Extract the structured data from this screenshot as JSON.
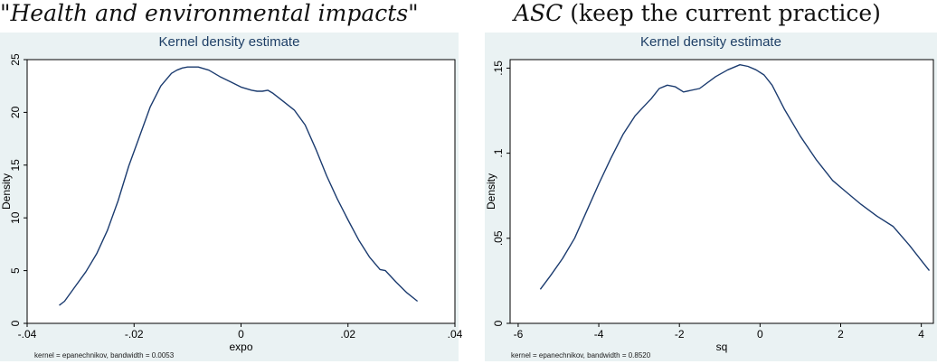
{
  "captions": {
    "left": "\"Health and environmental impacts\"",
    "right_italic": "ASC",
    "right_rest": " (keep the current practice)"
  },
  "chart_data": [
    {
      "type": "line",
      "title": "Kernel density estimate",
      "xlabel": "expo",
      "ylabel": "Density",
      "note": "kernel = epanechnikov, bandwidth = 0.0053",
      "xlim": [
        -0.04,
        0.04
      ],
      "ylim": [
        0,
        25
      ],
      "xticks": [
        -0.04,
        -0.02,
        0,
        0.02,
        0.04
      ],
      "xtick_labels": [
        "-.04",
        "-.02",
        "0",
        ".02",
        ".04"
      ],
      "yticks": [
        0,
        5,
        10,
        15,
        20,
        25
      ],
      "ytick_labels": [
        "0",
        "5",
        "10",
        "15",
        "20",
        "25"
      ],
      "grid": false,
      "x": [
        -0.034,
        -0.033,
        -0.031,
        -0.029,
        -0.027,
        -0.025,
        -0.023,
        -0.021,
        -0.019,
        -0.017,
        -0.015,
        -0.013,
        -0.012,
        -0.011,
        -0.01,
        -0.008,
        -0.006,
        -0.004,
        -0.002,
        0,
        0.002,
        0.003,
        0.004,
        0.005,
        0.006,
        0.008,
        0.01,
        0.012,
        0.014,
        0.016,
        0.018,
        0.02,
        0.022,
        0.024,
        0.026,
        0.027,
        0.029,
        0.031,
        0.033
      ],
      "y": [
        1.7,
        2.1,
        3.5,
        4.9,
        6.6,
        8.8,
        11.6,
        14.9,
        17.7,
        20.5,
        22.5,
        23.7,
        24.0,
        24.2,
        24.3,
        24.3,
        24.0,
        23.4,
        22.9,
        22.4,
        22.1,
        22.0,
        22.0,
        22.1,
        21.8,
        21.0,
        20.2,
        18.8,
        16.5,
        14.0,
        11.8,
        9.8,
        7.9,
        6.3,
        5.1,
        5.0,
        3.9,
        2.9,
        2.1
      ]
    },
    {
      "type": "line",
      "title": "Kernel density estimate",
      "xlabel": "sq",
      "ylabel": "Density",
      "note": "kernel = epanechnikov, bandwidth = 0.8520",
      "xlim": [
        -6.2,
        4.3
      ],
      "ylim": [
        0,
        0.155
      ],
      "xticks": [
        -6,
        -4,
        -2,
        0,
        2,
        4
      ],
      "xtick_labels": [
        "-6",
        "-4",
        "-2",
        "0",
        "2",
        "4"
      ],
      "yticks": [
        0,
        0.05,
        0.1,
        0.15
      ],
      "ytick_labels": [
        "0",
        ".05",
        ".1",
        ".15"
      ],
      "grid": false,
      "x": [
        -5.45,
        -5.2,
        -4.9,
        -4.6,
        -4.3,
        -4.0,
        -3.7,
        -3.4,
        -3.1,
        -2.9,
        -2.7,
        -2.5,
        -2.3,
        -2.1,
        -1.9,
        -1.5,
        -1.1,
        -0.8,
        -0.5,
        -0.3,
        -0.1,
        0.1,
        0.3,
        0.6,
        1.0,
        1.4,
        1.8,
        2.1,
        2.5,
        2.9,
        3.3,
        3.7,
        4.0,
        4.2
      ],
      "y": [
        0.02,
        0.028,
        0.038,
        0.05,
        0.066,
        0.082,
        0.097,
        0.111,
        0.122,
        0.127,
        0.132,
        0.138,
        0.14,
        0.139,
        0.136,
        0.138,
        0.145,
        0.149,
        0.152,
        0.151,
        0.149,
        0.146,
        0.14,
        0.126,
        0.11,
        0.096,
        0.084,
        0.078,
        0.07,
        0.063,
        0.057,
        0.046,
        0.037,
        0.031
      ]
    }
  ]
}
